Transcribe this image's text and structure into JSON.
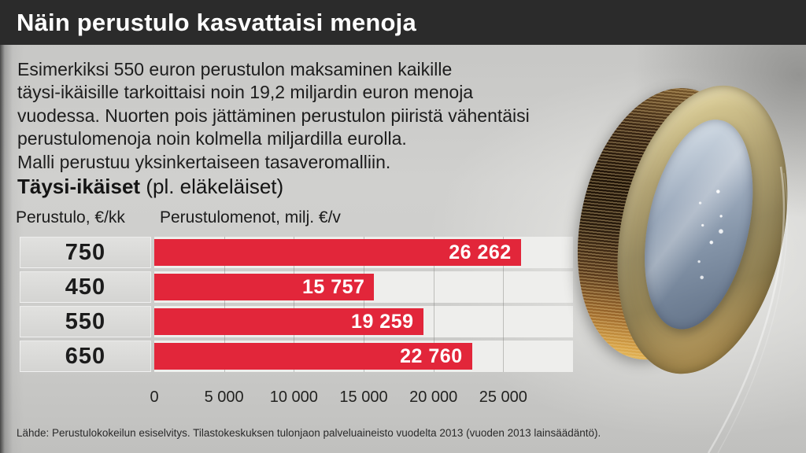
{
  "header": {
    "title": "Näin perustulo kasvattaisi menoja"
  },
  "intro": {
    "lines": [
      "Esimerkiksi 550 euron perustulon maksaminen kaikille",
      "täysi-ikäisille tarkoittaisi noin 19,2 miljardin euron menoja",
      "vuodessa. Nuorten pois jättäminen perustulon piiristä vähentäisi",
      "perustulomenoja noin kolmella miljardilla eurolla.",
      "Malli perustuu yksinkertaiseen tasaveromalliin."
    ]
  },
  "section": {
    "title_bold": "Täysi-ikäiset",
    "title_note": "(pl. eläkeläiset)"
  },
  "chart_data": {
    "type": "bar",
    "orientation": "horizontal",
    "title": "Täysi-ikäiset (pl. eläkeläiset)",
    "col_header_left": "Perustulo, €/kk",
    "col_header_right": "Perustulomenot, milj. €/v",
    "categories": [
      "450",
      "550",
      "650",
      "750"
    ],
    "values": [
      15757,
      19259,
      22760,
      26262
    ],
    "value_labels": [
      "15 757",
      "19 259",
      "22 760",
      "26 262"
    ],
    "x_ticks": [
      "0",
      "5 000",
      "10 000",
      "15 000",
      "20 000",
      "25 000"
    ],
    "x_tick_values": [
      0,
      5000,
      10000,
      15000,
      20000,
      25000
    ],
    "xlim": [
      0,
      30000
    ],
    "grid": true,
    "legend": "none",
    "bar_color": "#e2263a"
  },
  "source": {
    "text": "Lähde: Perustulokokeilun esiselvitys. Tilastokeskuksen tulonjaon palveluaineisto vuodelta 2013 (vuoden 2013 lainsäädäntö)."
  },
  "colors": {
    "accent_red": "#e2263a",
    "titlebar_bg": "#2b2b2b",
    "page_bg": "#cdcdcb",
    "plot_strip": "#eeeeec",
    "label_cell": "#d9d9d7"
  },
  "decor": {
    "image_subject": "one-euro coin standing on edge"
  }
}
